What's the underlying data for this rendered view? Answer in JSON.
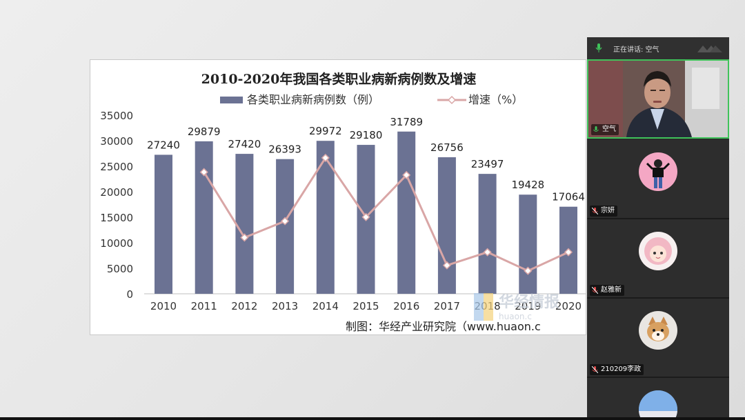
{
  "presentation": {
    "chart_data": {
      "type": "bar+line",
      "title": "2010-2020年我国各类职业病新病例数及增速",
      "categories": [
        "2010",
        "2011",
        "2012",
        "2013",
        "2014",
        "2015",
        "2016",
        "2017",
        "2018",
        "2019",
        "2020"
      ],
      "series": [
        {
          "name": "各类职业病新病例数（例）",
          "type": "bar",
          "color": "#6b7293",
          "values": [
            27240,
            29879,
            27420,
            26393,
            29972,
            29180,
            31789,
            26756,
            23497,
            19428,
            17064
          ]
        },
        {
          "name": "增速（%）",
          "type": "line",
          "color": "#d9a6a6",
          "values": [
            null,
            9.7,
            -8.2,
            -3.7,
            13.6,
            -2.6,
            8.9,
            -15.8,
            -12.2,
            -17.3,
            -12.2
          ]
        }
      ],
      "ylim": [
        0,
        35000
      ],
      "yticks": [
        0,
        5000,
        10000,
        15000,
        20000,
        25000,
        30000,
        35000
      ],
      "legend": "top",
      "source": "制图：华经产业研究院（www.huaon.c",
      "watermark": "华经情报",
      "watermark_sub": "huaon.c"
    }
  },
  "meeting": {
    "speaking_label": "正在讲话:",
    "speaking_name": "空气",
    "participants": [
      {
        "name": "空气",
        "active": true,
        "mic": "on",
        "mic_color": "#3fc35a"
      },
      {
        "name": "宗妍",
        "active": false,
        "mic": "muted",
        "mic_color": "#e04848"
      },
      {
        "name": "赵雅新",
        "active": false,
        "mic": "muted",
        "mic_color": "#e04848"
      },
      {
        "name": "210209李政",
        "active": false,
        "mic": "muted",
        "mic_color": "#e04848"
      },
      {
        "name": "",
        "active": false,
        "mic": "none"
      }
    ]
  }
}
